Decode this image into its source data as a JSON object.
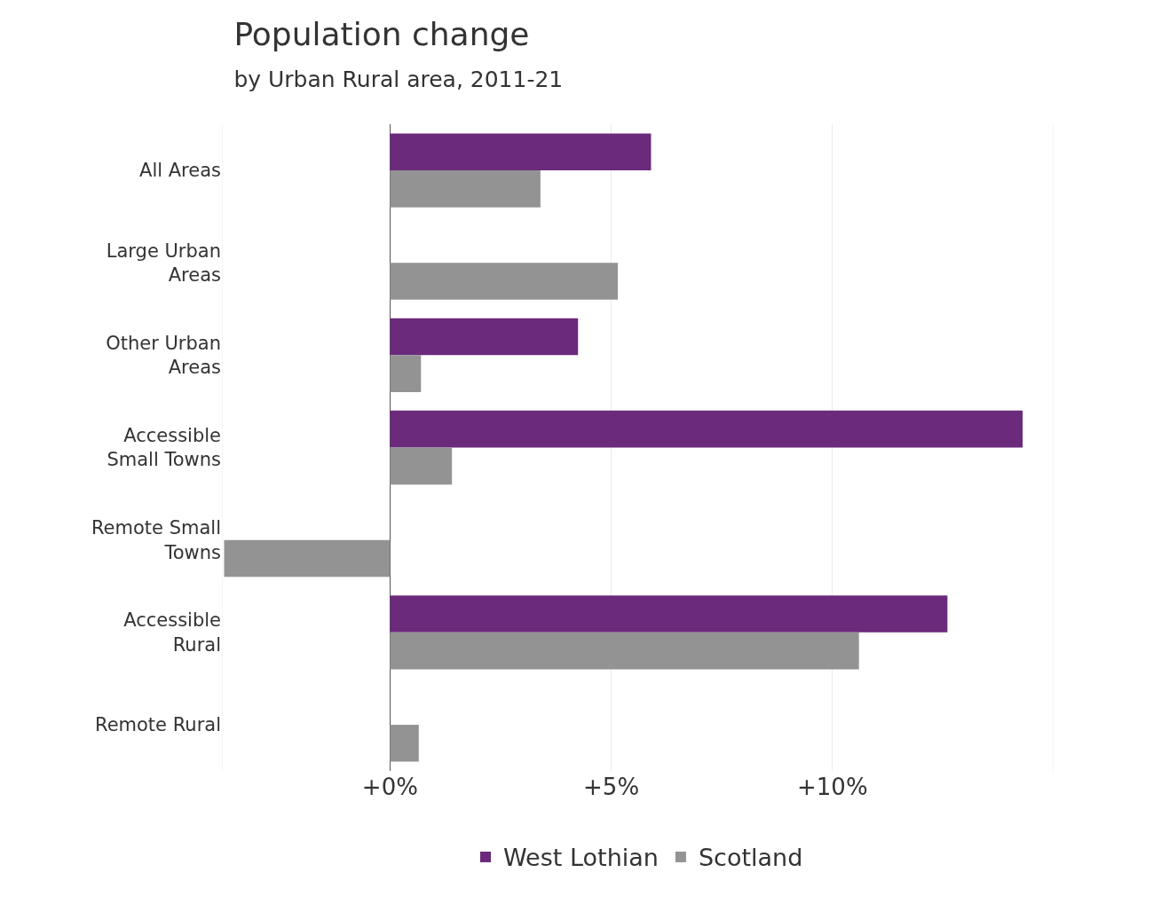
{
  "chart_data": {
    "type": "bar",
    "orientation": "horizontal",
    "title": "Population change",
    "subtitle": "by Urban Rural area, 2011-21",
    "categories": [
      "All Areas",
      "Large Urban Areas",
      "Other Urban Areas",
      "Accessible Small Towns",
      "Remote Small Towns",
      "Accessible Rural",
      "Remote Rural"
    ],
    "series": [
      {
        "name": "West Lothian",
        "color": "#6b2a7b",
        "values": [
          5.9,
          null,
          4.25,
          14.3,
          null,
          12.6,
          null
        ]
      },
      {
        "name": "Scotland",
        "color": "#939393",
        "values": [
          3.4,
          5.15,
          0.7,
          1.4,
          -3.75,
          10.6,
          0.65
        ]
      }
    ],
    "xlim": [
      -3.8,
      15
    ],
    "xticks": [
      {
        "value": 0,
        "label": "+0%"
      },
      {
        "value": 5,
        "label": "+5%"
      },
      {
        "value": 10,
        "label": "+10%"
      },
      {
        "value": 15,
        "label": null
      }
    ],
    "grid": "x",
    "legend": "bottom"
  }
}
